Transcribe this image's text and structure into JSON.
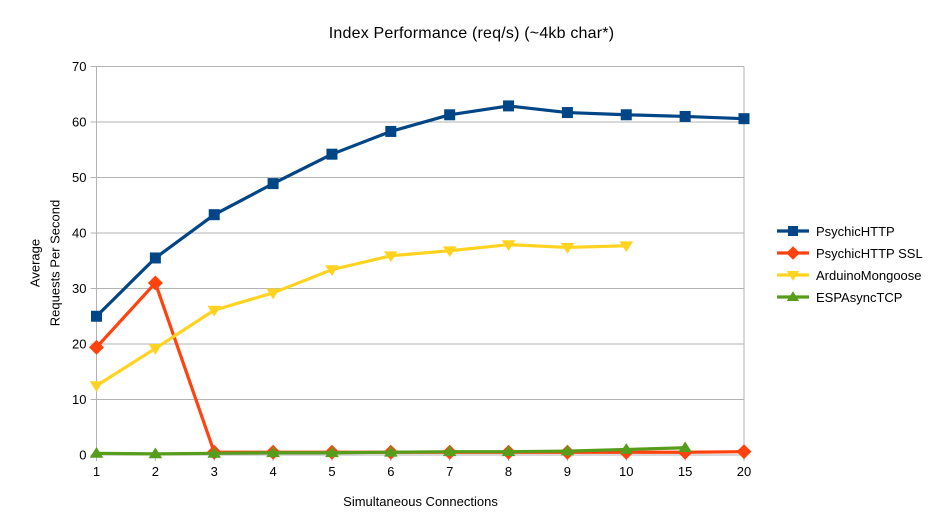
{
  "title": "Index Performance (req/s) (~4kb char*)",
  "chart_data": {
    "type": "line",
    "title": "Index Performance (req/s) (~4kb char*)",
    "xlabel": "Simultaneous Connections",
    "ylabel": "Average Requests Per Second",
    "ylabel_lines": [
      "Average",
      "Requests Per Second"
    ],
    "categories": [
      "1",
      "2",
      "3",
      "4",
      "5",
      "6",
      "7",
      "8",
      "9",
      "10",
      "15",
      "20"
    ],
    "ylim": [
      0,
      70
    ],
    "yticks": [
      0,
      10,
      20,
      30,
      40,
      50,
      60,
      70
    ],
    "grid": "horizontal",
    "legend_position": "right",
    "series": [
      {
        "name": "PsychicHTTP",
        "color": "#004586",
        "marker": "square",
        "values": [
          25.0,
          35.5,
          43.3,
          48.9,
          54.2,
          58.3,
          61.3,
          62.9,
          61.7,
          61.3,
          61.0,
          60.6
        ]
      },
      {
        "name": "PsychicHTTP SSL",
        "color": "#ff420e",
        "marker": "diamond",
        "values": [
          19.4,
          31.0,
          0.5,
          0.5,
          0.5,
          0.5,
          0.5,
          0.5,
          0.5,
          0.5,
          0.5,
          0.6
        ]
      },
      {
        "name": "ArduinoMongoose",
        "color": "#ffd320",
        "marker": "triangle-down",
        "values": [
          12.5,
          19.2,
          26.1,
          29.2,
          33.4,
          35.9,
          36.8,
          37.9,
          37.4,
          37.7,
          null,
          null
        ]
      },
      {
        "name": "ESPAsyncTCP",
        "color": "#579d1c",
        "marker": "triangle-up",
        "values": [
          0.3,
          0.2,
          0.3,
          0.4,
          0.4,
          0.5,
          0.6,
          0.6,
          0.7,
          1.0,
          1.3,
          null
        ]
      }
    ],
    "colors": {
      "grid": "#b3b3b3",
      "axis": "#b3b3b3",
      "text": "#000000",
      "background": "#ffffff"
    }
  }
}
